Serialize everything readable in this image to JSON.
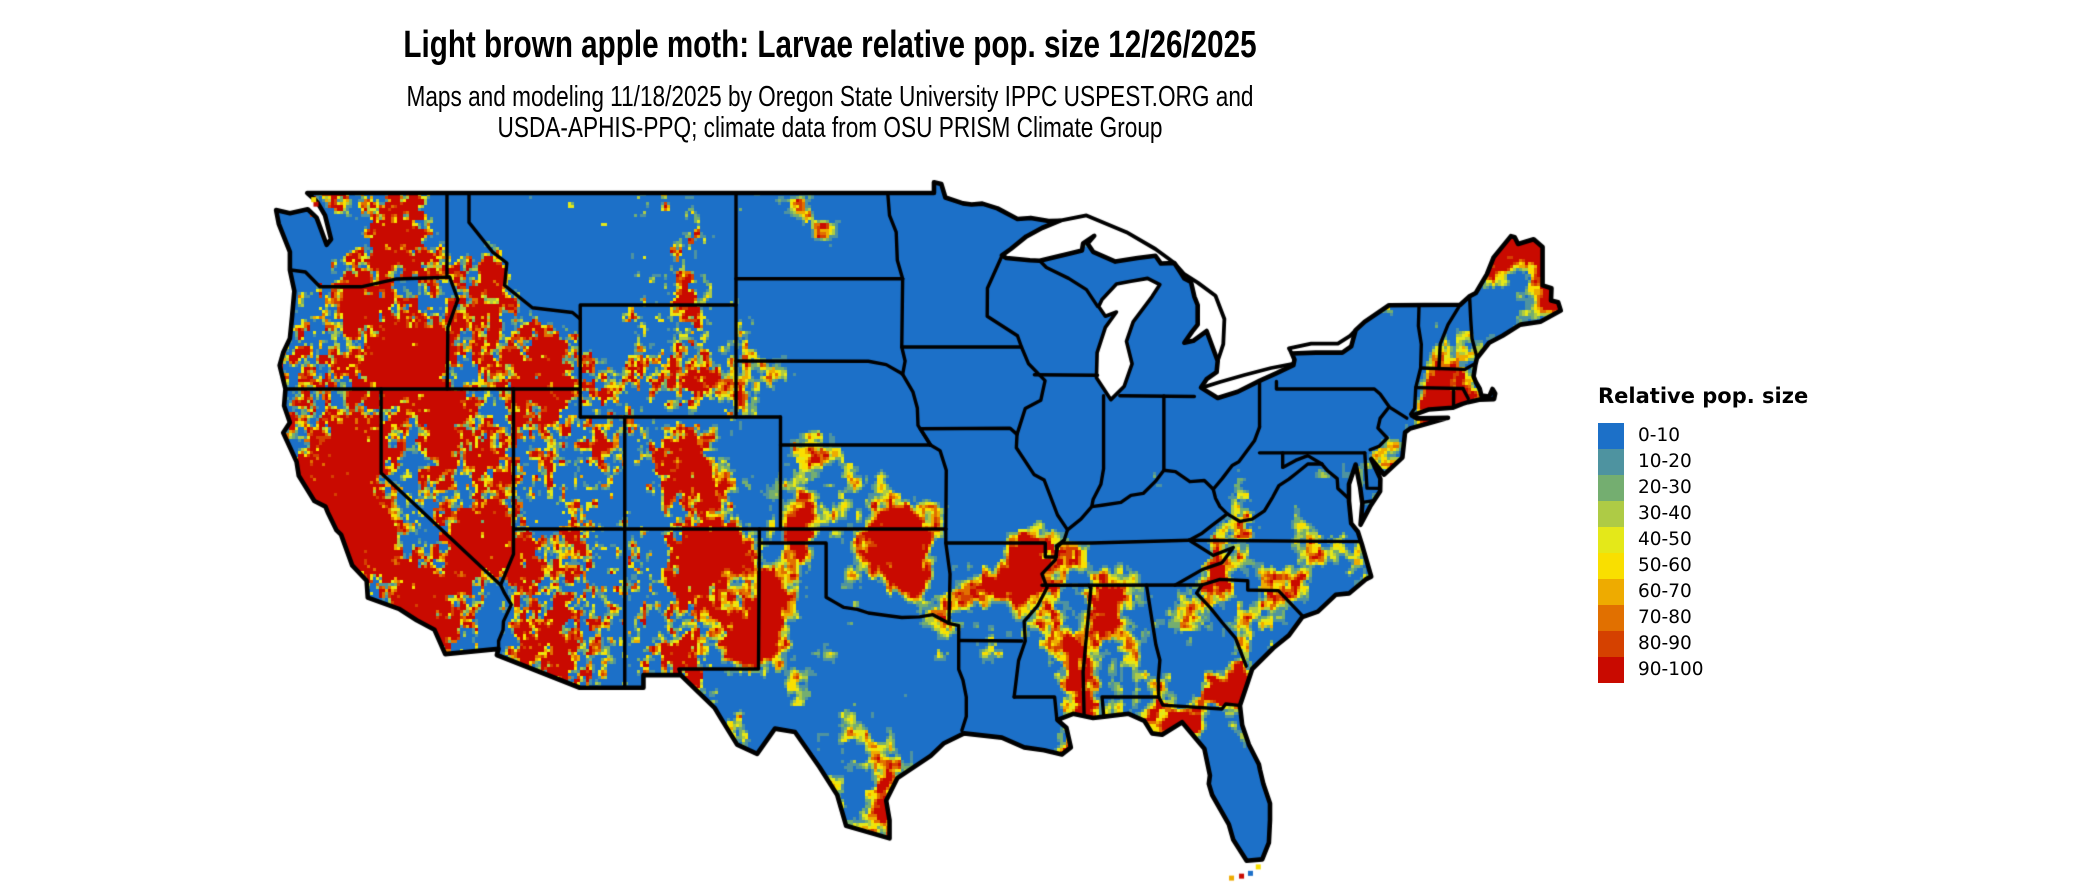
{
  "header": {
    "title": "Light brown apple moth: Larvae relative pop. size 12/26/2025",
    "subtitle_line1": "Maps and modeling 11/18/2025 by Oregon State University IPPC USPEST.ORG and",
    "subtitle_line2": "USDA-APHIS-PPQ; climate data from OSU PRISM Climate Group"
  },
  "legend": {
    "title": "Relative pop. size",
    "entries": [
      {
        "label": "0-10",
        "color": "#1C70C8"
      },
      {
        "label": "10-20",
        "color": "#4E93A0"
      },
      {
        "label": "20-30",
        "color": "#74AE70"
      },
      {
        "label": "30-40",
        "color": "#AECB45"
      },
      {
        "label": "40-50",
        "color": "#E4E819"
      },
      {
        "label": "50-60",
        "color": "#F9DF00"
      },
      {
        "label": "60-70",
        "color": "#EEAB00"
      },
      {
        "label": "70-80",
        "color": "#E17000"
      },
      {
        "label": "80-90",
        "color": "#D54100"
      },
      {
        "label": "90-100",
        "color": "#C90A00"
      }
    ]
  },
  "chart_data": {
    "type": "heatmap",
    "title": "Light brown apple moth: Larvae relative pop. size 12/26/2025",
    "region": "Contiguous United States raster map with black state borders, white water",
    "legend_title": "Relative pop. size",
    "classes": [
      "0-10",
      "10-20",
      "20-30",
      "30-40",
      "40-50",
      "50-60",
      "60-70",
      "70-80",
      "80-90",
      "90-100"
    ],
    "palette": [
      "#1C70C8",
      "#4E93A0",
      "#74AE70",
      "#AECB45",
      "#E4E819",
      "#F9DF00",
      "#EEAB00",
      "#E17000",
      "#D54100",
      "#C90A00"
    ],
    "border_color": "#000000",
    "background": "#ffffff",
    "legend_position": "right"
  }
}
